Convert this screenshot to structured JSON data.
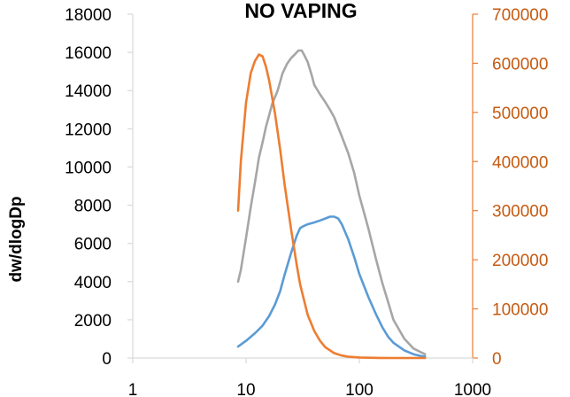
{
  "chart_data": {
    "type": "line",
    "title": "NO VAPING",
    "xlabel": "",
    "ylabel": "dw/dlogDp",
    "y2label": "",
    "x_scale": "log",
    "xlim": [
      1,
      1000
    ],
    "ylim": [
      0,
      18000
    ],
    "y2lim": [
      0,
      700000
    ],
    "x_ticks": [
      "1",
      "10",
      "100",
      "1000"
    ],
    "y_ticks": [
      "0",
      "2000",
      "4000",
      "6000",
      "8000",
      "10000",
      "12000",
      "14000",
      "16000",
      "18000"
    ],
    "y2_ticks": [
      "0",
      "100000",
      "200000",
      "300000",
      "400000",
      "500000",
      "600000",
      "700000"
    ],
    "grid": false,
    "legend": "none",
    "series": [
      {
        "color": "#a6a6a6",
        "axis": "left",
        "x": [
          8.5,
          9,
          10,
          11,
          12,
          13,
          14,
          15,
          17,
          19,
          21,
          23,
          25,
          27,
          29,
          31,
          33,
          35,
          38,
          40,
          45,
          50,
          55,
          60,
          70,
          80,
          90,
          100,
          120,
          140,
          160,
          180,
          200,
          250,
          300,
          350,
          380
        ],
        "y": [
          4000,
          4600,
          6300,
          7900,
          9200,
          10500,
          11300,
          12100,
          13300,
          14000,
          14900,
          15400,
          15700,
          15900,
          16100,
          16100,
          15800,
          15500,
          14800,
          14300,
          13800,
          13400,
          13000,
          12600,
          11600,
          10700,
          9700,
          8500,
          6800,
          5200,
          3900,
          2900,
          2000,
          1000,
          500,
          300,
          200
        ]
      },
      {
        "color": "#5b9bd5",
        "axis": "left",
        "x": [
          8.5,
          10,
          12,
          14,
          16,
          18,
          20,
          22,
          25,
          28,
          30,
          32,
          35,
          40,
          45,
          50,
          55,
          60,
          65,
          70,
          80,
          90,
          100,
          120,
          140,
          160,
          180,
          200,
          250,
          300,
          350,
          380
        ],
        "y": [
          600,
          900,
          1300,
          1700,
          2200,
          2800,
          3500,
          4400,
          5500,
          6400,
          6800,
          6900,
          7000,
          7100,
          7200,
          7300,
          7400,
          7400,
          7300,
          7000,
          6200,
          5300,
          4400,
          3200,
          2300,
          1600,
          1100,
          800,
          400,
          200,
          100,
          80
        ]
      },
      {
        "color": "#ed7d31",
        "axis": "right",
        "x": [
          8.5,
          9,
          10,
          11,
          12,
          13,
          14,
          15,
          16,
          18,
          20,
          22,
          25,
          28,
          30,
          35,
          40,
          45,
          50,
          60,
          70,
          80,
          100,
          150,
          200,
          300,
          380
        ],
        "y": [
          300000,
          400000,
          520000,
          580000,
          605000,
          618000,
          614000,
          593000,
          565000,
          498000,
          425000,
          350000,
          262000,
          190000,
          150000,
          88000,
          55000,
          35000,
          22000,
          10000,
          5000,
          2500,
          1000,
          200,
          50,
          10,
          5
        ]
      }
    ]
  }
}
